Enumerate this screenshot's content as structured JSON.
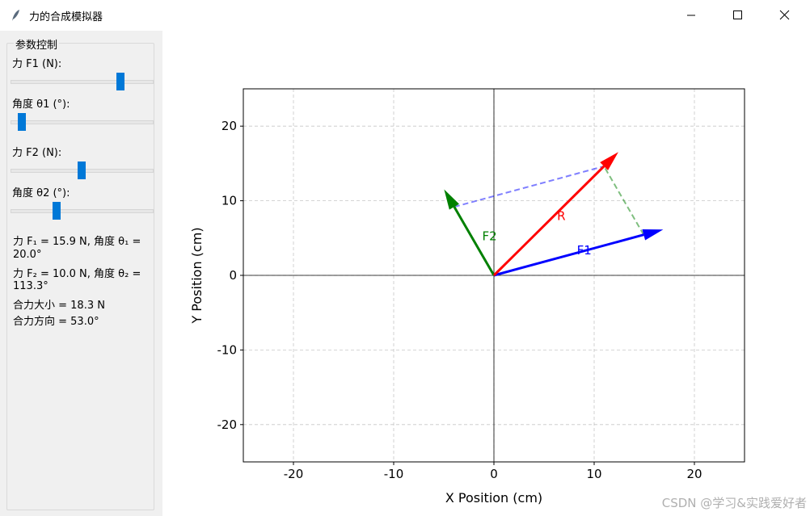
{
  "window": {
    "title": "力的合成模拟器"
  },
  "panel": {
    "title": "参数控制",
    "sliders": [
      {
        "label": "力 F1 (N):",
        "value": 15.9,
        "min": 0,
        "max": 20
      },
      {
        "label": "角度 θ1 (°):",
        "value": 20,
        "min": 0,
        "max": 360
      },
      {
        "label": "力 F2 (N):",
        "value": 10,
        "min": 0,
        "max": 20
      },
      {
        "label": "角度 θ2 (°):",
        "value": 113.3,
        "min": 0,
        "max": 360
      }
    ],
    "info": [
      "力 F₁ = 15.9 N, 角度 θ₁ =",
      "20.0°",
      "力 F₂ = 10.0 N, 角度 θ₂ =",
      "113.3°",
      "合力大小 = 18.3 N",
      "合力方向 = 53.0°"
    ]
  },
  "chart_data": {
    "type": "arrow",
    "xlabel": "X Position (cm)",
    "ylabel": "Y Position (cm)",
    "xlim": [
      -25,
      25
    ],
    "ylim": [
      -25,
      25
    ],
    "xticks": [
      -20,
      -10,
      0,
      10,
      20
    ],
    "yticks": [
      -20,
      -10,
      0,
      10,
      20
    ],
    "grid": true,
    "series": [
      {
        "name": "F1",
        "color": "#0000ff",
        "x": [
          0,
          14.94
        ],
        "y": [
          0,
          5.44
        ]
      },
      {
        "name": "F2",
        "color": "#008000",
        "x": [
          0,
          -3.96
        ],
        "y": [
          0,
          9.18
        ]
      },
      {
        "name": "R",
        "color": "#ff0000",
        "x": [
          0,
          10.98
        ],
        "y": [
          0,
          14.62
        ]
      }
    ],
    "guides": [
      {
        "color": "#0000ff",
        "x": [
          -3.96,
          10.98
        ],
        "y": [
          9.18,
          14.62
        ]
      },
      {
        "color": "#008000",
        "x": [
          14.94,
          10.98
        ],
        "y": [
          5.44,
          14.62
        ]
      }
    ]
  },
  "watermark": "CSDN @学习&实践爱好者"
}
